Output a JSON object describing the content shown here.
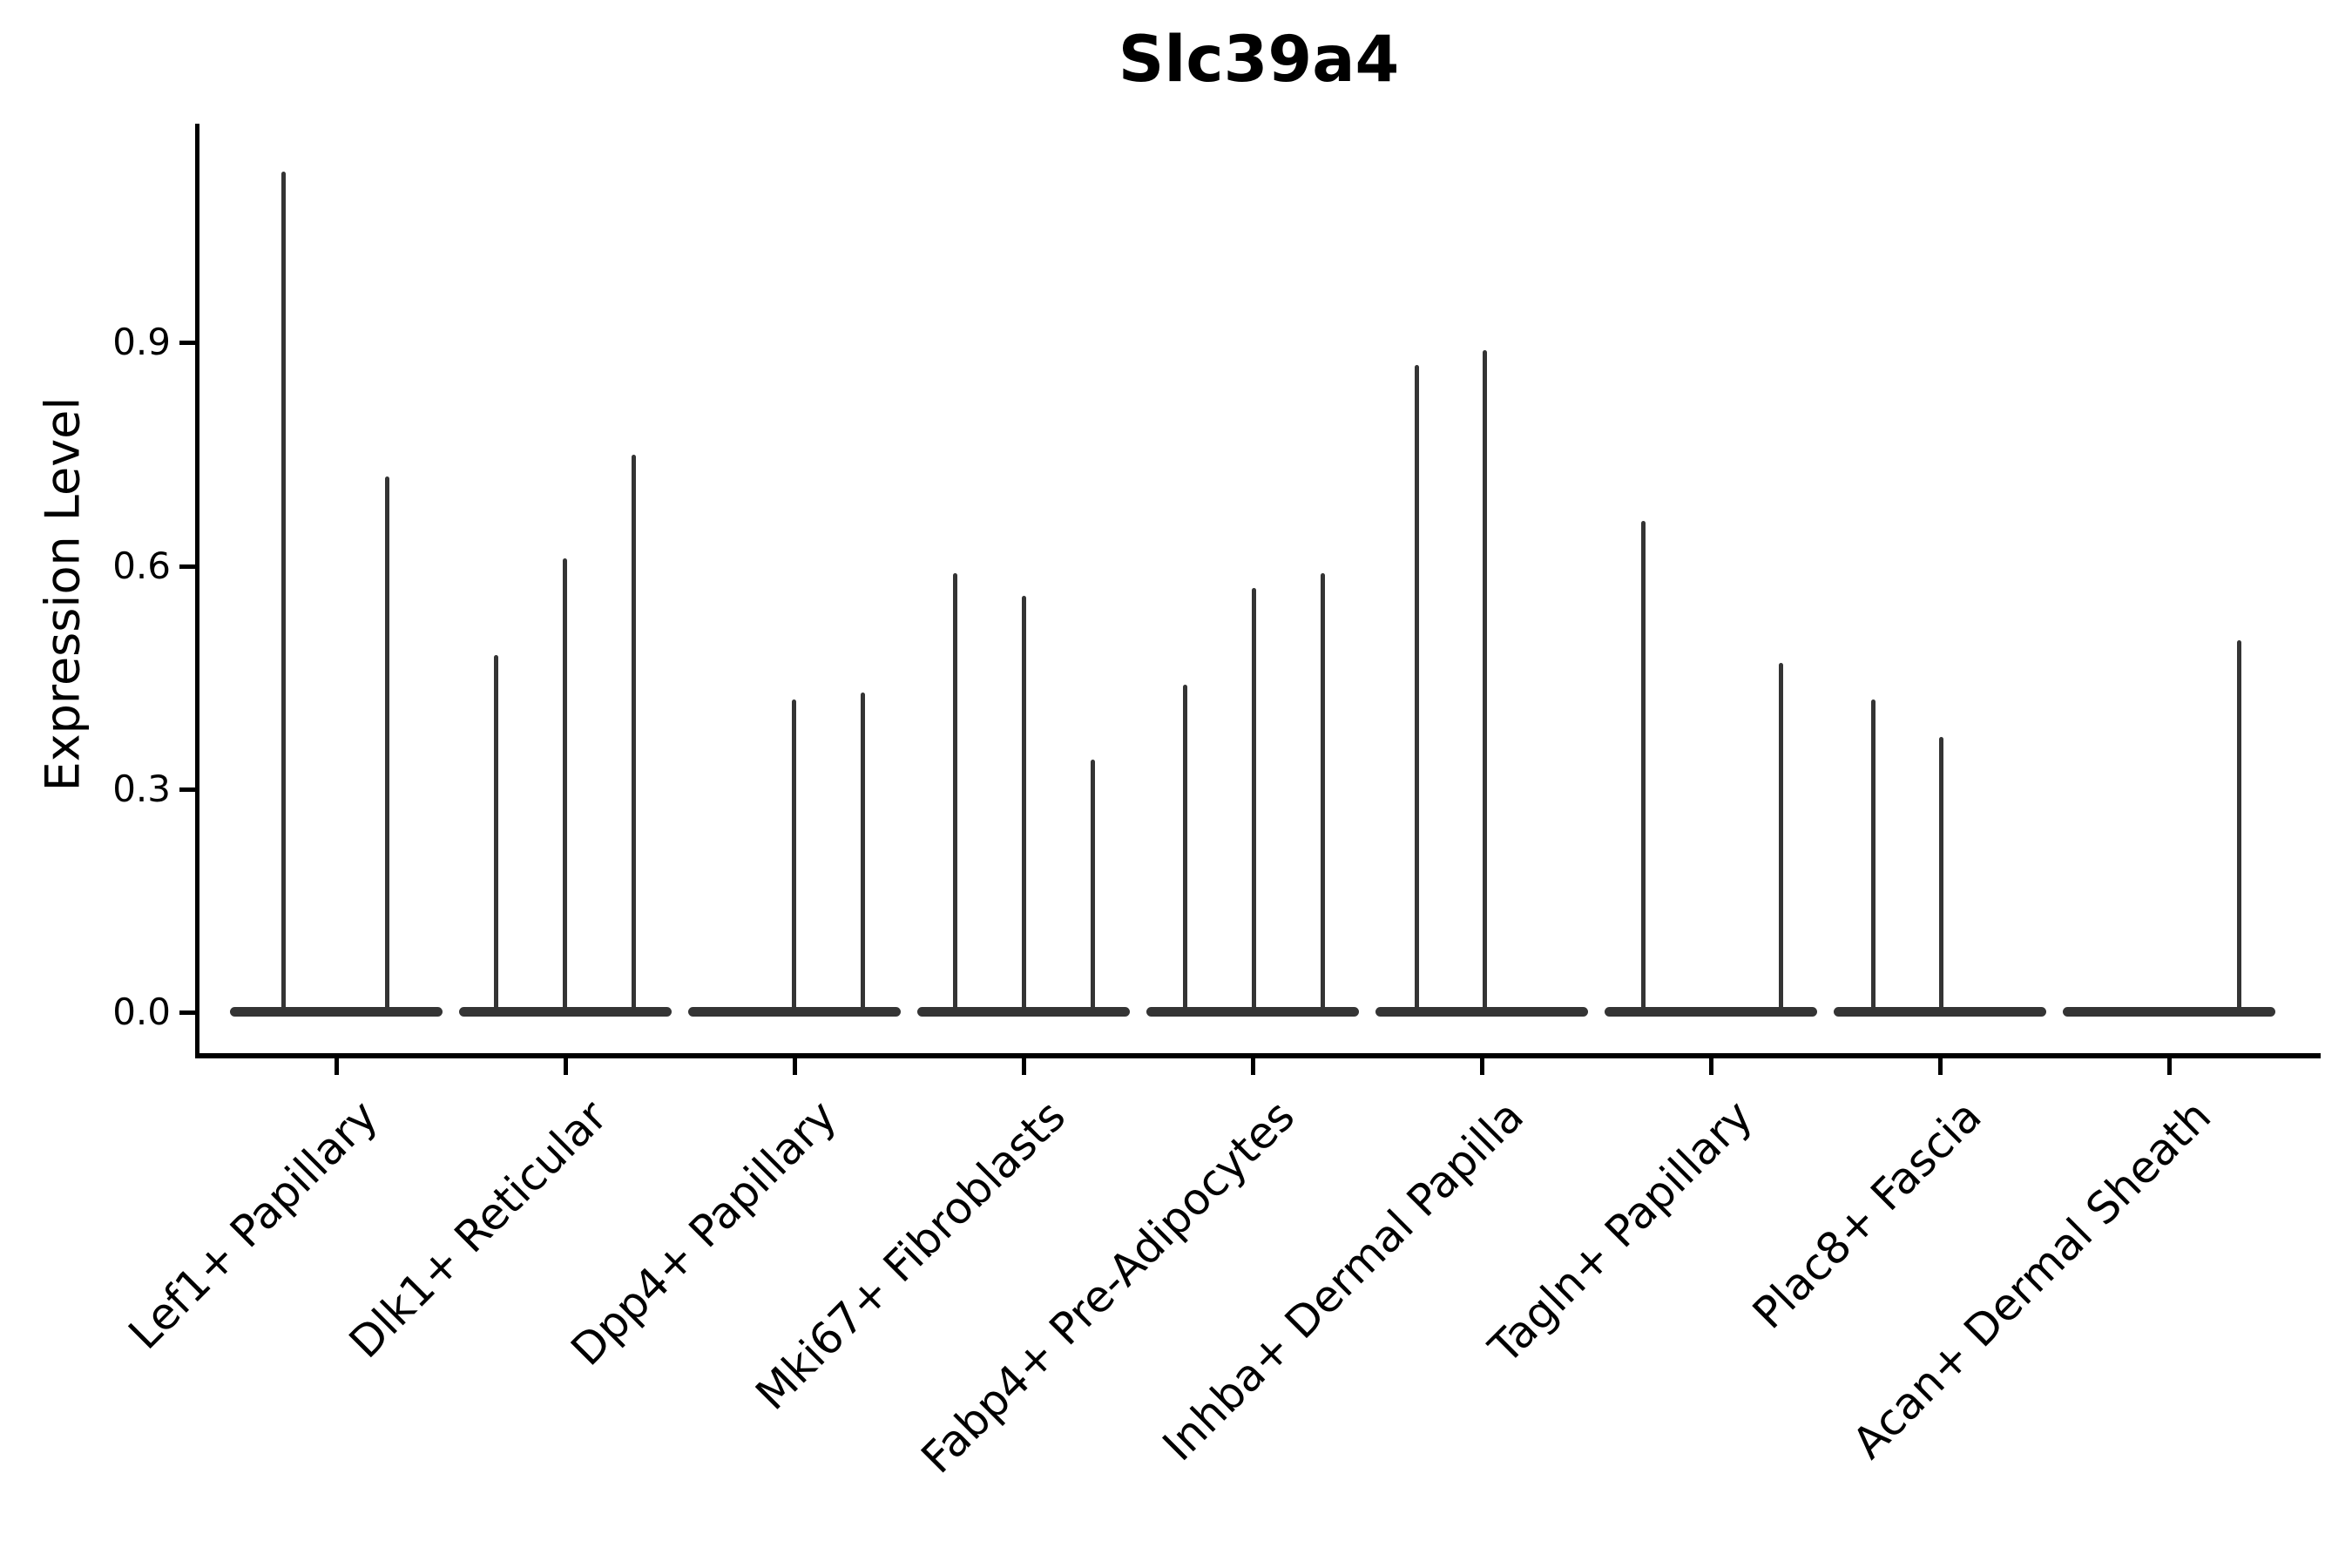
{
  "figure": {
    "title": "Slc39a4",
    "background_color": "#ffffff",
    "axis_color": "#000000",
    "violin_color": "#343434"
  },
  "chart_data": {
    "type": "violin",
    "title": "Slc39a4",
    "xlabel": "",
    "ylabel": "Expression Level",
    "ylim": [
      0,
      1.2
    ],
    "yticks": [
      0.0,
      0.3,
      0.6,
      0.9
    ],
    "ytick_labels": [
      "0.0",
      "0.3",
      "0.6",
      "0.9"
    ],
    "grid": false,
    "legend_position": "none",
    "note": "Each violin is a needle spike rising from a flat base at expression 0; peak = maximum expression level of that violin",
    "categories": [
      {
        "label": "Lef1+ Papillary",
        "center_x": 386,
        "violins": [
          {
            "x": 325,
            "peak": 1.13
          },
          {
            "x": 444,
            "peak": 0.72
          }
        ]
      },
      {
        "label": "Dlk1+ Reticular",
        "center_x": 649,
        "violins": [
          {
            "x": 569,
            "peak": 0.48
          },
          {
            "x": 648,
            "peak": 0.61
          },
          {
            "x": 727,
            "peak": 0.75
          }
        ]
      },
      {
        "label": "Dpp4+ Papillary",
        "center_x": 912,
        "violins": [
          {
            "x": 911,
            "peak": 0.42
          },
          {
            "x": 990,
            "peak": 0.43
          }
        ]
      },
      {
        "label": "Mki67+ Fibroblasts",
        "center_x": 1175,
        "violins": [
          {
            "x": 1096,
            "peak": 0.59
          },
          {
            "x": 1175,
            "peak": 0.56
          },
          {
            "x": 1254,
            "peak": 0.34
          }
        ]
      },
      {
        "label": "Fabp4+ Pre-Adipocytes",
        "center_x": 1438,
        "violins": [
          {
            "x": 1360,
            "peak": 0.44
          },
          {
            "x": 1439,
            "peak": 0.57
          },
          {
            "x": 1518,
            "peak": 0.59
          }
        ]
      },
      {
        "label": "Inhba+ Dermal Papilla",
        "center_x": 1701,
        "violins": [
          {
            "x": 1626,
            "peak": 0.87
          },
          {
            "x": 1704,
            "peak": 0.89
          }
        ]
      },
      {
        "label": "Tagln+ Papillary",
        "center_x": 1964,
        "violins": [
          {
            "x": 1886,
            "peak": 0.66
          },
          {
            "x": 2044,
            "peak": 0.47
          }
        ]
      },
      {
        "label": "Plac8+ Fascia",
        "center_x": 2227,
        "violins": [
          {
            "x": 2150,
            "peak": 0.42
          },
          {
            "x": 2228,
            "peak": 0.37
          }
        ]
      },
      {
        "label": "Acan+ Dermal Sheath",
        "center_x": 2490,
        "violins": [
          {
            "x": 2570,
            "peak": 0.5
          }
        ]
      }
    ]
  }
}
